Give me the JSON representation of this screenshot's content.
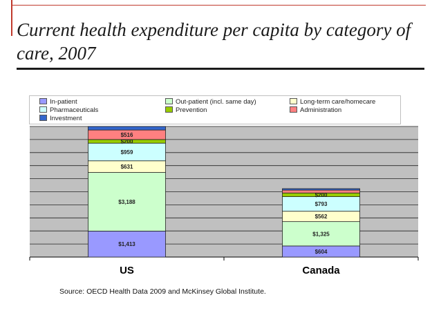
{
  "slide": {
    "title": "Current health expenditure per capita by category of care, 2007",
    "source": "Source: OECD Health Data 2009 and McKinsey Global Institute."
  },
  "chart_data": {
    "type": "bar",
    "stacked": true,
    "categories": [
      "US",
      "Canada"
    ],
    "series": [
      {
        "name": "In-patient",
        "color": "#9999ff",
        "values": [
          1413,
          604
        ],
        "labels": [
          "$1,413",
          "$604"
        ]
      },
      {
        "name": "Out-patient (incl. same day)",
        "color": "#ccffcc",
        "values": [
          3188,
          1325
        ],
        "labels": [
          "$3,188",
          "$1,325"
        ]
      },
      {
        "name": "Long-term care/homecare",
        "color": "#ffffcc",
        "values": [
          631,
          562
        ],
        "labels": [
          "$631",
          "$562"
        ]
      },
      {
        "name": "Pharmaceuticals",
        "color": "#ccffff",
        "values": [
          959,
          793
        ],
        "labels": [
          "$959",
          "$793"
        ]
      },
      {
        "name": "Prevention",
        "color": "#99cc00",
        "values": [
          200,
          200
        ],
        "labels": [
          "$200",
          "$200"
        ]
      },
      {
        "name": "Administration",
        "color": "#ff8080",
        "values": [
          516,
          155
        ],
        "labels": [
          "$516",
          ""
        ]
      },
      {
        "name": "Investment",
        "color": "#3366cc",
        "values": [
          193,
          80
        ],
        "labels": [
          "",
          ""
        ]
      }
    ],
    "ylim": [
      0,
      7100
    ],
    "grid": true,
    "legend_position": "top"
  }
}
